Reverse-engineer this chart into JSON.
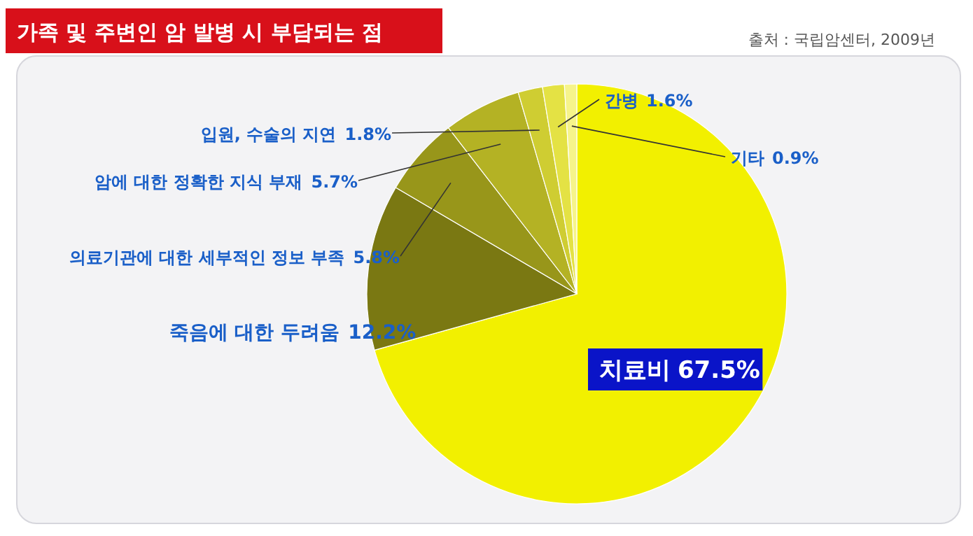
{
  "chart_data": {
    "type": "pie",
    "title": "가족 및 주변인 암 발병 시 부담되는 점",
    "annotations": [
      "출처 : 국립암센터, 2009년"
    ],
    "categories": [
      "치료비",
      "죽음에 대한 두려움",
      "의료기관에 대한 세부적인 정보 부족",
      "암에 대한 정확한 지식 부재",
      "입원, 수술의 지연",
      "간병",
      "기타"
    ],
    "values": [
      67.5,
      12.2,
      5.8,
      5.7,
      1.8,
      1.6,
      0.9
    ],
    "colors": [
      "#f2f000",
      "#7a7812",
      "#98961a",
      "#b4b224",
      "#cfcd32",
      "#e4e244",
      "#f6f48a"
    ],
    "value_labels": [
      "67.5%",
      "12.2%",
      "5.8%",
      "5.7%",
      "1.8%",
      "1.6%",
      "0.9%"
    ]
  }
}
